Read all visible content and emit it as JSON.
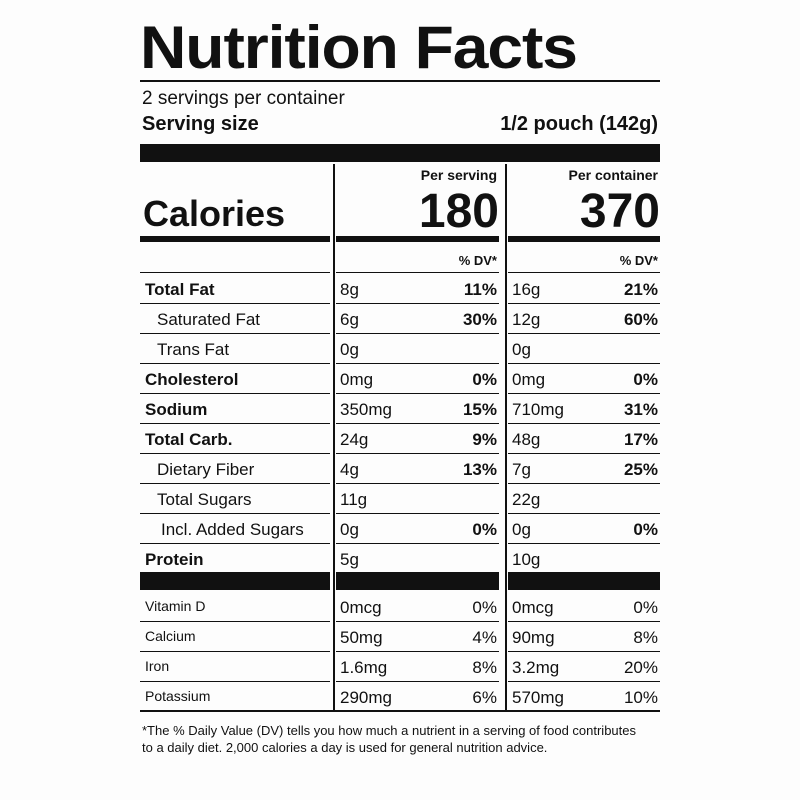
{
  "title": "Nutrition Facts",
  "servings": "2 servings per container",
  "serving_size_label": "Serving size",
  "serving_size_value": "1/2 pouch (142g)",
  "calories_label": "Calories",
  "columns": [
    {
      "header": "Per serving",
      "calories": "180",
      "dv_header": "% DV*"
    },
    {
      "header": "Per container",
      "calories": "370",
      "dv_header": "% DV*"
    }
  ],
  "nutrients": [
    {
      "name": "Total Fat",
      "bold": true,
      "indent": 0,
      "values": [
        [
          "8g",
          "11%"
        ],
        [
          "16g",
          "21%"
        ]
      ]
    },
    {
      "name": "Saturated Fat",
      "bold": false,
      "indent": 1,
      "values": [
        [
          "6g",
          "30%"
        ],
        [
          "12g",
          "60%"
        ]
      ]
    },
    {
      "name": "Trans Fat",
      "bold": false,
      "indent": 1,
      "values": [
        [
          "0g",
          null
        ],
        [
          "0g",
          null
        ]
      ]
    },
    {
      "name": "Cholesterol",
      "bold": true,
      "indent": 0,
      "values": [
        [
          "0mg",
          "0%"
        ],
        [
          "0mg",
          "0%"
        ]
      ]
    },
    {
      "name": "Sodium",
      "bold": true,
      "indent": 0,
      "values": [
        [
          "350mg",
          "15%"
        ],
        [
          "710mg",
          "31%"
        ]
      ]
    },
    {
      "name": "Total Carb.",
      "bold": true,
      "indent": 0,
      "values": [
        [
          "24g",
          "9%"
        ],
        [
          "48g",
          "17%"
        ]
      ]
    },
    {
      "name": "Dietary Fiber",
      "bold": false,
      "indent": 1,
      "values": [
        [
          "4g",
          "13%"
        ],
        [
          "7g",
          "25%"
        ]
      ]
    },
    {
      "name": "Total Sugars",
      "bold": false,
      "indent": 1,
      "values": [
        [
          "11g",
          null
        ],
        [
          "22g",
          null
        ]
      ]
    },
    {
      "name": "Incl. Added Sugars",
      "bold": false,
      "indent": 2,
      "values": [
        [
          "0g",
          "0%"
        ],
        [
          "0g",
          "0%"
        ]
      ]
    },
    {
      "name": "Protein",
      "bold": true,
      "indent": 0,
      "values": [
        [
          "5g",
          null
        ],
        [
          "10g",
          null
        ]
      ]
    }
  ],
  "vitamins": [
    {
      "name": "Vitamin D",
      "values": [
        [
          "0mcg",
          "0%"
        ],
        [
          "0mcg",
          "0%"
        ]
      ]
    },
    {
      "name": "Calcium",
      "values": [
        [
          "50mg",
          "4%"
        ],
        [
          "90mg",
          "8%"
        ]
      ]
    },
    {
      "name": "Iron",
      "values": [
        [
          "1.6mg",
          "8%"
        ],
        [
          "3.2mg",
          "20%"
        ]
      ]
    },
    {
      "name": "Potassium",
      "values": [
        [
          "290mg",
          "6%"
        ],
        [
          "570mg",
          "10%"
        ]
      ]
    }
  ],
  "footnote": "*The % Daily Value (DV) tells you how much a nutrient in a serving of food contributes to a daily diet. 2,000 calories a day is used for general nutrition advice."
}
